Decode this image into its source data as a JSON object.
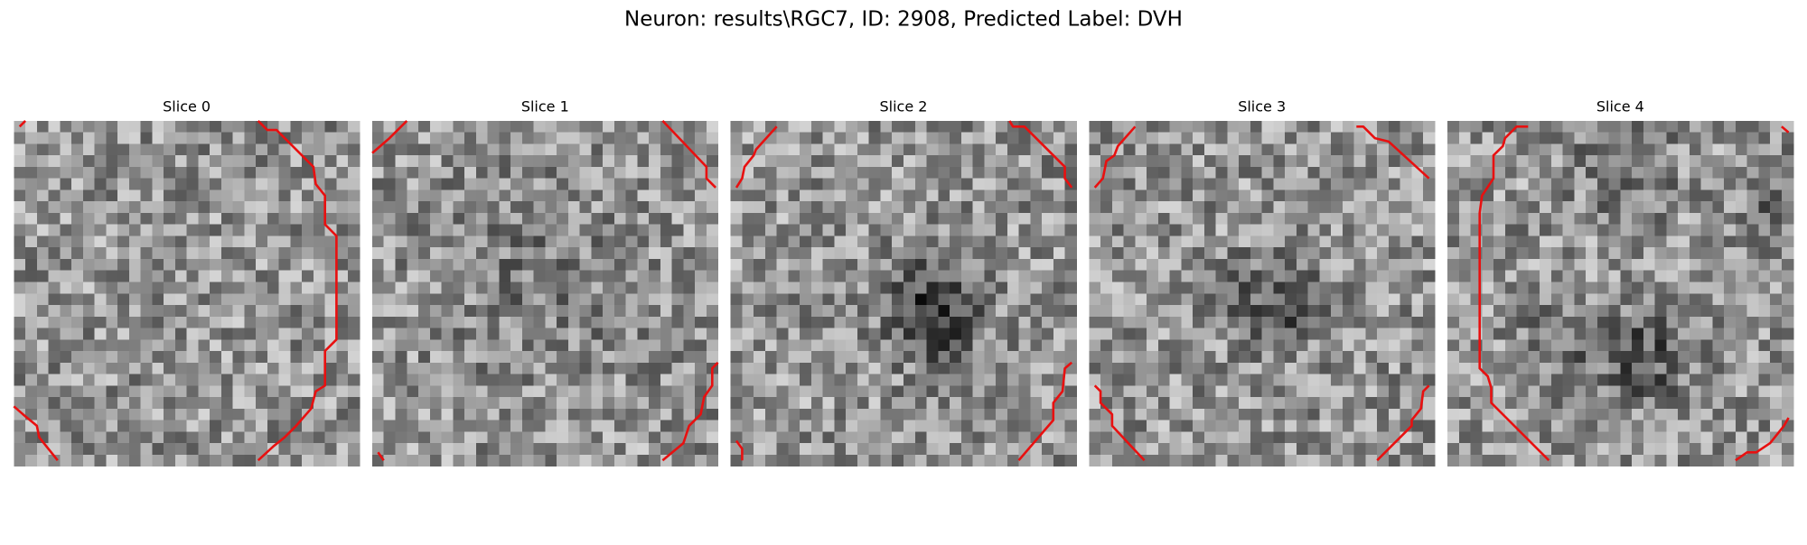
{
  "title": "Neuron: results\\RGC7, ID: 2908, Predicted Label: DVH",
  "panels": [
    {
      "title": "Slice 0"
    },
    {
      "title": "Slice 1"
    },
    {
      "title": "Slice 2"
    },
    {
      "title": "Slice 3"
    },
    {
      "title": "Slice 4"
    }
  ]
}
